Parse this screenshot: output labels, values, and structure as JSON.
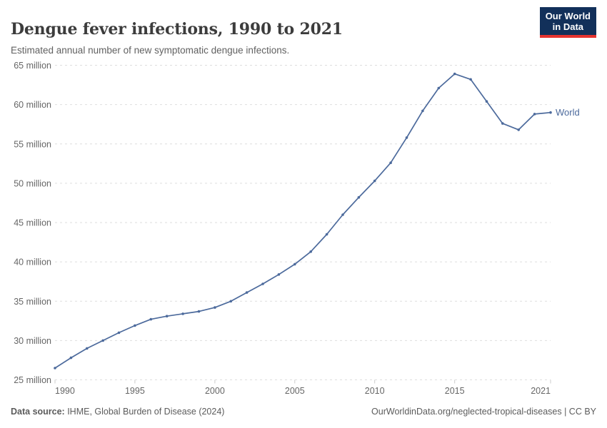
{
  "header": {
    "title": "Dengue fever infections, 1990 to 2021",
    "subtitle": "Estimated annual number of new symptomatic dengue infections.",
    "logo": {
      "line1": "Our World",
      "line2": "in Data"
    }
  },
  "chart_data": {
    "type": "line",
    "title": "Dengue fever infections, 1990 to 2021",
    "xlabel": "",
    "ylabel": "",
    "unit": "million",
    "xlim": [
      1990,
      2021
    ],
    "ylim": [
      25,
      65
    ],
    "grid": true,
    "legend_position": "end-of-line",
    "xticks": [
      1990,
      1995,
      2000,
      2005,
      2010,
      2015,
      2021
    ],
    "yticks": [
      25,
      30,
      35,
      40,
      45,
      50,
      55,
      60,
      65
    ],
    "ytick_format": "{v} million",
    "x": [
      1990,
      1991,
      1992,
      1993,
      1994,
      1995,
      1996,
      1997,
      1998,
      1999,
      2000,
      2001,
      2002,
      2003,
      2004,
      2005,
      2006,
      2007,
      2008,
      2009,
      2010,
      2011,
      2012,
      2013,
      2014,
      2015,
      2016,
      2017,
      2018,
      2019,
      2020,
      2021
    ],
    "series": [
      {
        "name": "World",
        "color": "#4C6A9C",
        "values": [
          26.5,
          27.8,
          29.0,
          30.0,
          31.0,
          31.9,
          32.7,
          33.1,
          33.4,
          33.7,
          34.2,
          35.0,
          36.1,
          37.2,
          38.4,
          39.7,
          41.3,
          43.5,
          46.0,
          48.2,
          50.3,
          52.6,
          55.8,
          59.2,
          62.1,
          63.9,
          63.2,
          60.4,
          57.6,
          56.8,
          58.8,
          59.0
        ]
      }
    ]
  },
  "footer": {
    "source_label": "Data source:",
    "source_text": " IHME, Global Burden of Disease (2024)",
    "credit": "OurWorldinData.org/neglected-tropical-diseases | CC BY"
  },
  "colors": {
    "line": "#4C6A9C",
    "logo_bg": "#12305a",
    "logo_stripe": "#e5332f",
    "gridline": "#dedede",
    "axis_text": "#666666"
  }
}
